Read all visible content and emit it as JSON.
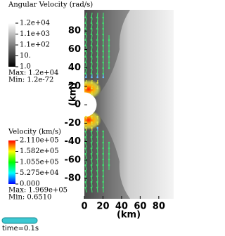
{
  "chart_data": {
    "type": "vector",
    "xlabel": "(km)",
    "ylabel": "(km)",
    "xlim": [
      0,
      96
    ],
    "ylim": [
      -102,
      103
    ],
    "xticks": [
      0,
      20,
      40,
      60,
      80
    ],
    "yticks": [
      80,
      60,
      40,
      20,
      0,
      -20,
      -40,
      -60,
      -80
    ],
    "legends": [
      {
        "title": "Angular Velocity (rad/s)",
        "labels": [
          "1.2e+04",
          "1.1e+03",
          "1.1e+02",
          "10.",
          "1.0"
        ],
        "max": "Max: 1.2e+04",
        "min": "Min: 1.2e-72"
      },
      {
        "title": "Velocity (km/s)",
        "labels": [
          "2.110e+05",
          "1.582e+05",
          "1.055e+05",
          "5.275e+04",
          "0.000"
        ],
        "max": "Max: 1.969e+05",
        "min": "Min: 0.6510"
      }
    ],
    "time": "time=0.1s"
  }
}
